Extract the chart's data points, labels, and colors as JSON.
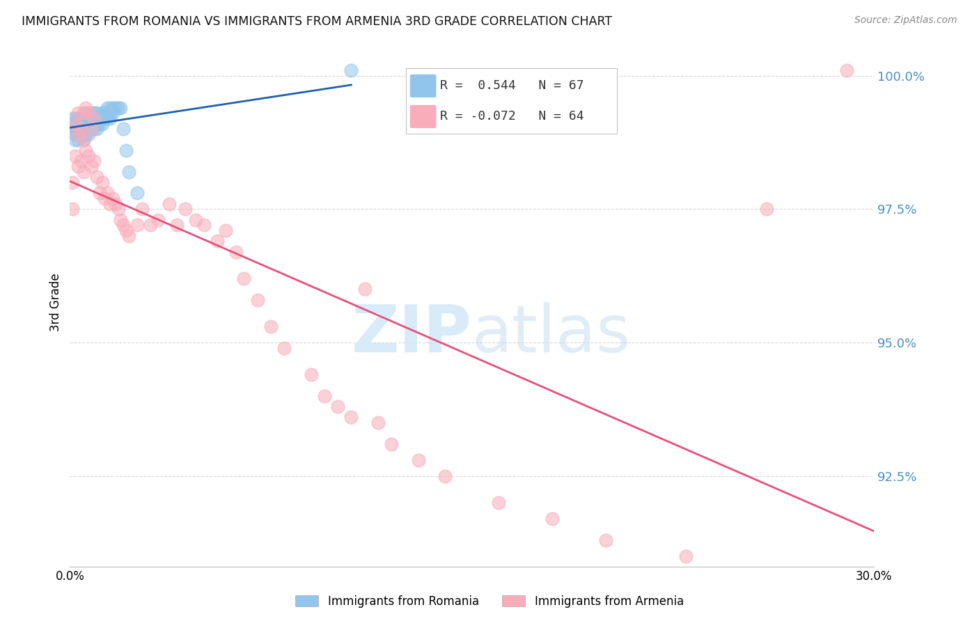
{
  "title": "IMMIGRANTS FROM ROMANIA VS IMMIGRANTS FROM ARMENIA 3RD GRADE CORRELATION CHART",
  "source": "Source: ZipAtlas.com",
  "ylabel": "3rd Grade",
  "ytick_labels": [
    "100.0%",
    "97.5%",
    "95.0%",
    "92.5%"
  ],
  "ytick_values": [
    1.0,
    0.975,
    0.95,
    0.925
  ],
  "xlim": [
    0.0,
    0.3
  ],
  "ylim": [
    0.908,
    1.007
  ],
  "legend_romania_r": " 0.544",
  "legend_romania_n": "67",
  "legend_armenia_r": "-0.072",
  "legend_armenia_n": "64",
  "romania_color": "#92C5EC",
  "armenia_color": "#F9ACBA",
  "romania_edge_color": "#92C5EC",
  "armenia_edge_color": "#F9ACBA",
  "romania_line_color": "#2060B0",
  "armenia_line_color": "#E8507A",
  "watermark": "ZIPatlas",
  "background_color": "#ffffff",
  "grid_color": "#d8d8d8",
  "romania_x": [
    0.001,
    0.001,
    0.001,
    0.002,
    0.002,
    0.002,
    0.002,
    0.002,
    0.003,
    0.003,
    0.003,
    0.003,
    0.003,
    0.004,
    0.004,
    0.004,
    0.004,
    0.005,
    0.005,
    0.005,
    0.005,
    0.005,
    0.006,
    0.006,
    0.006,
    0.006,
    0.006,
    0.007,
    0.007,
    0.007,
    0.007,
    0.007,
    0.008,
    0.008,
    0.008,
    0.008,
    0.009,
    0.009,
    0.009,
    0.009,
    0.01,
    0.01,
    0.01,
    0.01,
    0.011,
    0.011,
    0.012,
    0.012,
    0.012,
    0.013,
    0.013,
    0.014,
    0.014,
    0.014,
    0.015,
    0.015,
    0.015,
    0.016,
    0.016,
    0.017,
    0.018,
    0.019,
    0.02,
    0.021,
    0.022,
    0.025,
    0.105
  ],
  "romania_y": [
    0.99,
    0.991,
    0.992,
    0.988,
    0.989,
    0.99,
    0.991,
    0.992,
    0.988,
    0.989,
    0.99,
    0.991,
    0.992,
    0.989,
    0.99,
    0.991,
    0.992,
    0.988,
    0.989,
    0.99,
    0.991,
    0.992,
    0.989,
    0.99,
    0.991,
    0.992,
    0.993,
    0.989,
    0.99,
    0.991,
    0.992,
    0.993,
    0.99,
    0.991,
    0.992,
    0.993,
    0.99,
    0.991,
    0.992,
    0.993,
    0.99,
    0.991,
    0.992,
    0.993,
    0.991,
    0.992,
    0.991,
    0.992,
    0.993,
    0.992,
    0.993,
    0.992,
    0.993,
    0.994,
    0.992,
    0.993,
    0.994,
    0.993,
    0.994,
    0.994,
    0.994,
    0.994,
    0.99,
    0.986,
    0.982,
    0.978,
    1.001
  ],
  "armenia_x": [
    0.001,
    0.001,
    0.002,
    0.002,
    0.003,
    0.003,
    0.003,
    0.004,
    0.004,
    0.005,
    0.005,
    0.005,
    0.006,
    0.006,
    0.007,
    0.007,
    0.008,
    0.008,
    0.009,
    0.009,
    0.01,
    0.011,
    0.012,
    0.013,
    0.014,
    0.015,
    0.016,
    0.017,
    0.018,
    0.019,
    0.02,
    0.021,
    0.022,
    0.025,
    0.027,
    0.03,
    0.033,
    0.037,
    0.04,
    0.043,
    0.047,
    0.05,
    0.055,
    0.058,
    0.062,
    0.065,
    0.07,
    0.075,
    0.08,
    0.09,
    0.095,
    0.1,
    0.105,
    0.11,
    0.115,
    0.12,
    0.13,
    0.14,
    0.16,
    0.18,
    0.2,
    0.23,
    0.26,
    0.29
  ],
  "armenia_y": [
    0.98,
    0.975,
    0.991,
    0.985,
    0.993,
    0.989,
    0.983,
    0.99,
    0.984,
    0.993,
    0.988,
    0.982,
    0.994,
    0.986,
    0.993,
    0.985,
    0.99,
    0.983,
    0.992,
    0.984,
    0.981,
    0.978,
    0.98,
    0.977,
    0.978,
    0.976,
    0.977,
    0.976,
    0.975,
    0.973,
    0.972,
    0.971,
    0.97,
    0.972,
    0.975,
    0.972,
    0.973,
    0.976,
    0.972,
    0.975,
    0.973,
    0.972,
    0.969,
    0.971,
    0.967,
    0.962,
    0.958,
    0.953,
    0.949,
    0.944,
    0.94,
    0.938,
    0.936,
    0.96,
    0.935,
    0.931,
    0.928,
    0.925,
    0.92,
    0.917,
    0.913,
    0.91,
    0.975,
    1.001
  ]
}
